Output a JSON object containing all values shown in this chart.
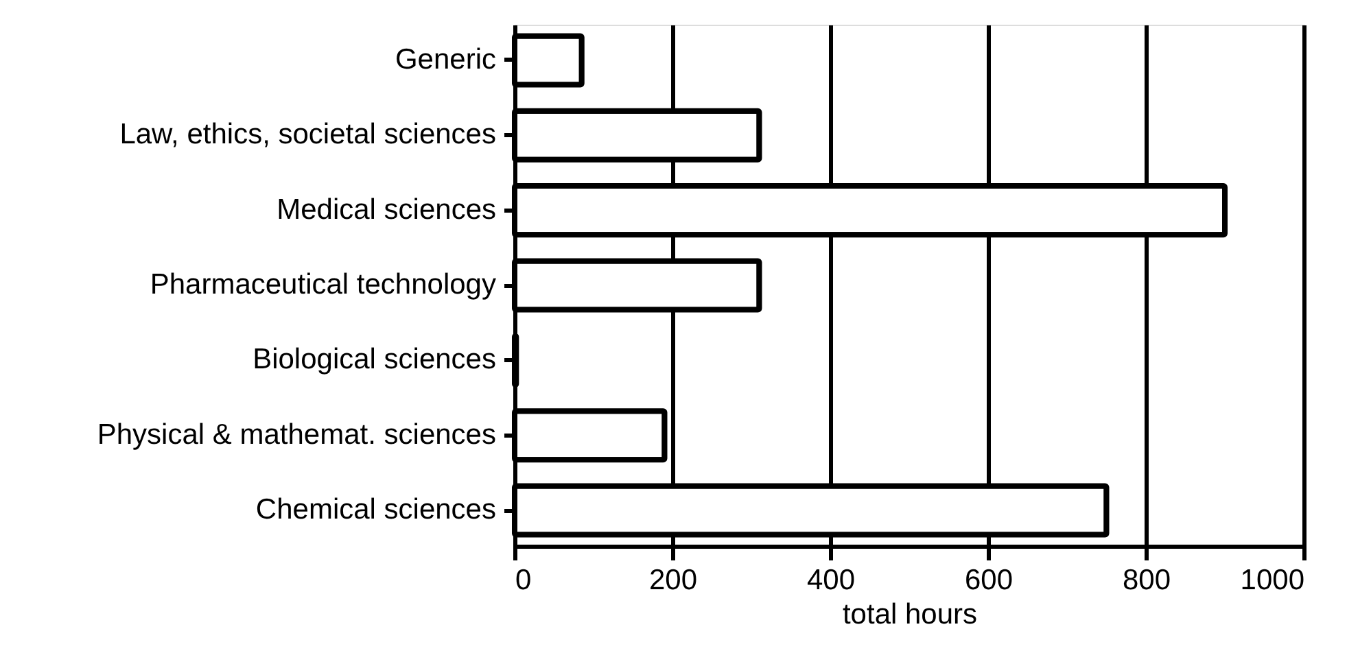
{
  "chart_data": {
    "type": "bar",
    "orientation": "horizontal",
    "categories": [
      "Generic",
      "Law, ethics, societal sciences",
      "Medical sciences",
      "Pharmaceutical technology",
      "Biological sciences",
      "Physical & mathemat. sciences",
      "Chemical sciences"
    ],
    "values": [
      85,
      310,
      900,
      310,
      2,
      190,
      750
    ],
    "color": "#ffffff",
    "xlabel": "total hours",
    "xlim": [
      0,
      1000
    ],
    "xticks": [
      0,
      200,
      400,
      600,
      800,
      1000
    ],
    "grid": "x"
  }
}
